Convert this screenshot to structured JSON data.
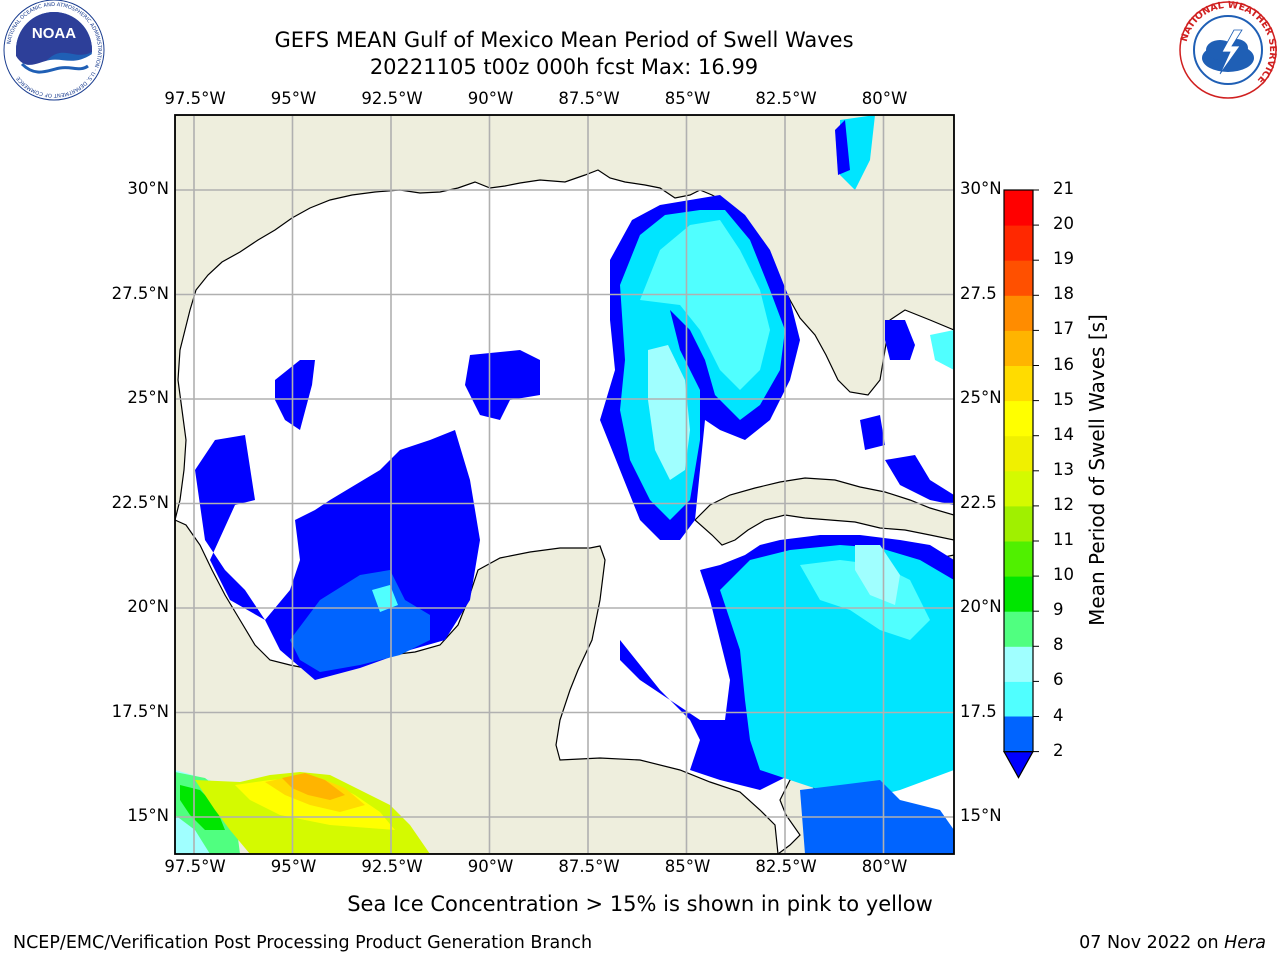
{
  "header": {
    "title_line1": "GEFS MEAN Gulf of Mexico Mean Period of Swell Waves",
    "title_line2": "20221105 t00z 000h fcst   Max: 16.99"
  },
  "logos": {
    "left": "NOAA",
    "left_ring_text": "NATIONAL OCEANIC AND ATMOSPHERIC ADMINISTRATION · U.S. DEPARTMENT OF COMMERCE",
    "right_ring_text": "NATIONAL WEATHER SERVICE"
  },
  "map": {
    "lon_labels": [
      "97.5°W",
      "95°W",
      "92.5°W",
      "90°W",
      "87.5°W",
      "85°W",
      "82.5°W",
      "80°W"
    ],
    "lat_labels": [
      "30°N",
      "27.5°N",
      "25°N",
      "22.5°N",
      "20°N",
      "17.5°N",
      "15°N"
    ],
    "lat_labels_right": [
      "30°N",
      "27.5",
      "25°N",
      "22.5",
      "20°N",
      "17.5",
      "15°N"
    ],
    "colors": {
      "land": "#eeeedd",
      "ocean": "#ffffff",
      "grid": "#b0b0b0"
    }
  },
  "colorbar": {
    "label": "Mean Period of Swell Waves [s]",
    "ticks": [
      "2",
      "4",
      "6",
      "8",
      "9",
      "10",
      "11",
      "12",
      "13",
      "14",
      "15",
      "16",
      "17",
      "18",
      "19",
      "20",
      "21"
    ],
    "colors": [
      "#0064ff",
      "#00e5ff",
      "#50ffff",
      "#a0ffff",
      "#50ff80",
      "#00e600",
      "#50f000",
      "#a0f000",
      "#d4fa00",
      "#f0f000",
      "#ffff00",
      "#ffdc00",
      "#ffb400",
      "#ff8c00",
      "#ff5000",
      "#ff2800",
      "#ff0000"
    ],
    "under_color": "#0000ff"
  },
  "caption": "Sea Ice Concentration > 15% is shown in pink to yellow",
  "footer": {
    "left": "NCEP/EMC/Verification Post Processing Product Generation Branch",
    "right_prefix": "07 Nov 2022 on ",
    "right_host": "Hera"
  }
}
